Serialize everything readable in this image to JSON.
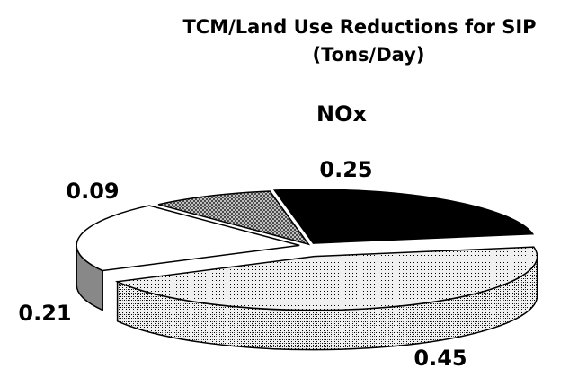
{
  "chart_data": {
    "type": "pie3d",
    "title": [
      "TCM/Land Use Reductions for SIP",
      "(Tons/Day)"
    ],
    "subtitle": "NOx",
    "values": [
      0.25,
      0.45,
      0.21,
      0.09
    ],
    "colors": [
      "#000000",
      "#f0f0f0",
      "#ffffff",
      "#d0d0d0"
    ]
  }
}
